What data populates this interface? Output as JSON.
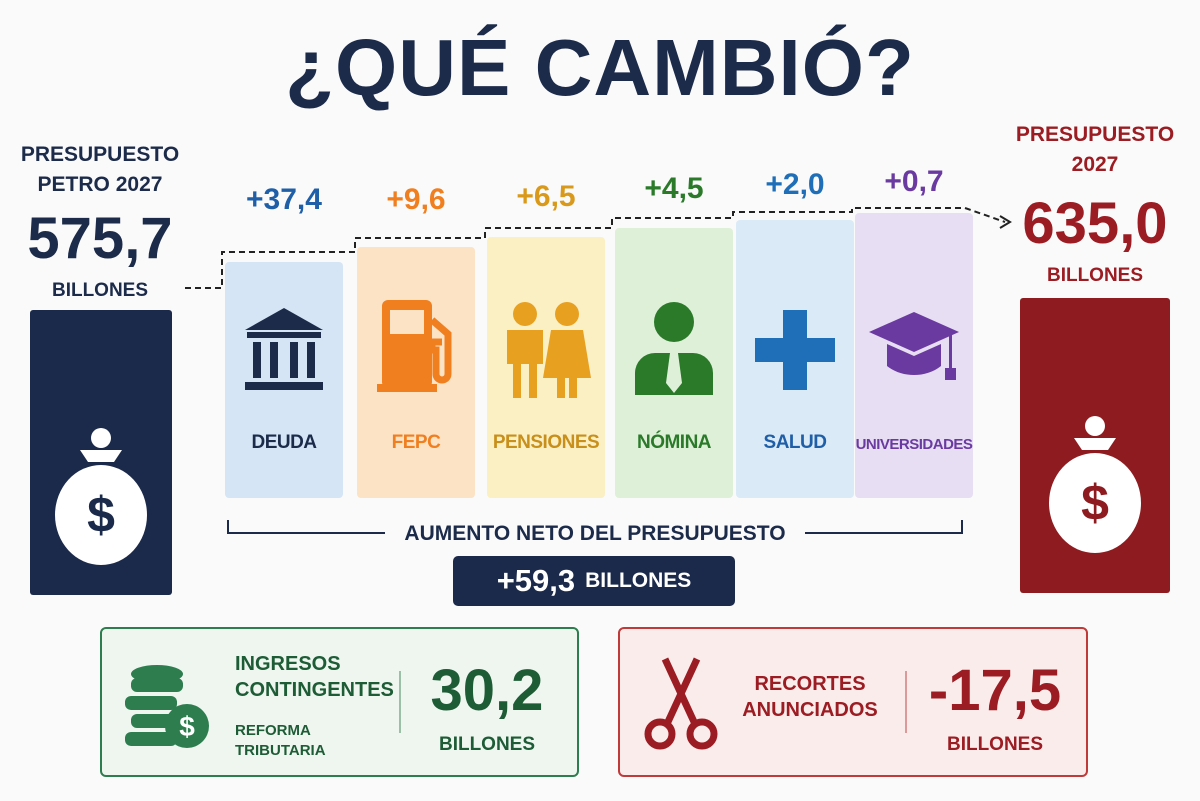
{
  "title": "¿QUÉ CAMBIÓ?",
  "start": {
    "label_lines": [
      "PRESUPUESTO",
      "PETRO 2027"
    ],
    "amount": "575,7",
    "unit": "BILLONES"
  },
  "end": {
    "label_lines": [
      "PRESUPUESTO",
      "2027"
    ],
    "amount": "635,0",
    "unit": "BILLONES"
  },
  "items": [
    {
      "change": "+37,4",
      "label": "DEUDA"
    },
    {
      "change": "+9,6",
      "label": "FEPC"
    },
    {
      "change": "+6,5",
      "label": "PENSIONES"
    },
    {
      "change": "+4,5",
      "label": "NÓMINA"
    },
    {
      "change": "+2,0",
      "label": "SALUD"
    },
    {
      "change": "+0,7",
      "label": "UNIVERSIDADES"
    }
  ],
  "net": {
    "label": "AUMENTO NETO DEL PRESUPUESTO",
    "amount": "+59,3",
    "unit": "BILLONES"
  },
  "income": {
    "title_lines": [
      "INGRESOS",
      "CONTINGENTES"
    ],
    "subtitle_lines": [
      "REFORMA",
      "TRIBUTARIA"
    ],
    "amount": "30,2",
    "unit": "BILLONES"
  },
  "cuts": {
    "title_lines": [
      "RECORTES",
      "ANUNCIADOS"
    ],
    "amount": "-17,5",
    "unit": "BILLONES"
  }
}
